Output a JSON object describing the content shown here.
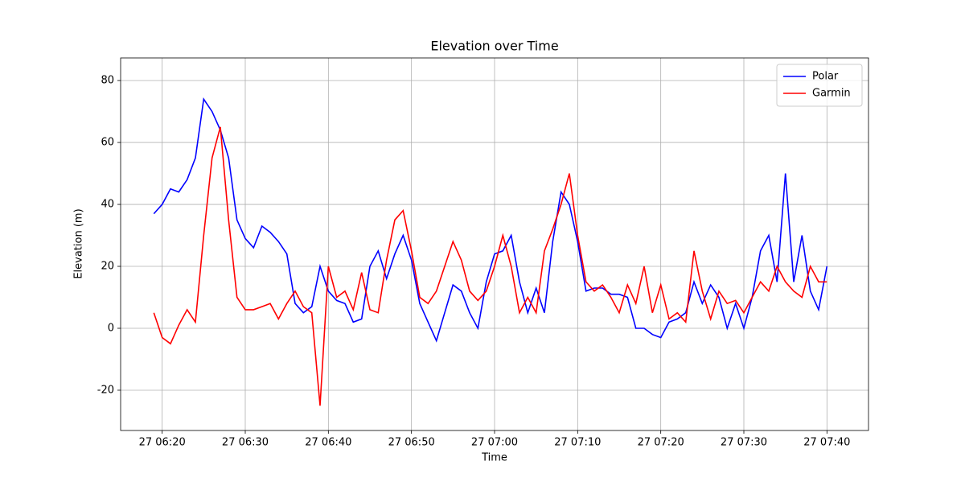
{
  "chart_data": {
    "type": "line",
    "title": "Elevation over Time",
    "xlabel": "Time",
    "ylabel": "Elevation (m)",
    "x": [
      "27 06:19",
      "27 06:20",
      "27 06:21",
      "27 06:22",
      "27 06:23",
      "27 06:24",
      "27 06:25",
      "27 06:26",
      "27 06:27",
      "27 06:28",
      "27 06:29",
      "27 06:30",
      "27 06:31",
      "27 06:32",
      "27 06:33",
      "27 06:34",
      "27 06:35",
      "27 06:36",
      "27 06:37",
      "27 06:38",
      "27 06:39",
      "27 06:40",
      "27 06:41",
      "27 06:42",
      "27 06:43",
      "27 06:44",
      "27 06:45",
      "27 06:46",
      "27 06:47",
      "27 06:48",
      "27 06:49",
      "27 06:50",
      "27 06:51",
      "27 06:52",
      "27 06:53",
      "27 06:54",
      "27 06:55",
      "27 06:56",
      "27 06:57",
      "27 06:58",
      "27 06:59",
      "27 07:00",
      "27 07:01",
      "27 07:02",
      "27 07:03",
      "27 07:04",
      "27 07:05",
      "27 07:06",
      "27 07:07",
      "27 07:08",
      "27 07:09",
      "27 07:10",
      "27 07:11",
      "27 07:12",
      "27 07:13",
      "27 07:14",
      "27 07:15",
      "27 07:16",
      "27 07:17",
      "27 07:18",
      "27 07:19",
      "27 07:20",
      "27 07:21",
      "27 07:22",
      "27 07:23",
      "27 07:24",
      "27 07:25",
      "27 07:26",
      "27 07:27",
      "27 07:28",
      "27 07:29",
      "27 07:30",
      "27 07:31",
      "27 07:32",
      "27 07:33",
      "27 07:34",
      "27 07:35",
      "27 07:36",
      "27 07:37",
      "27 07:38",
      "27 07:39",
      "27 07:40"
    ],
    "series": [
      {
        "name": "Polar",
        "color": "#0000ff",
        "values": [
          37,
          40,
          45,
          44,
          48,
          55,
          74,
          70,
          64,
          55,
          35,
          29,
          26,
          33,
          31,
          28,
          24,
          8,
          5,
          7,
          20,
          12,
          9,
          8,
          2,
          3,
          20,
          25,
          16,
          24,
          30,
          22,
          8,
          2,
          -4,
          5,
          14,
          12,
          5,
          0,
          15,
          24,
          25,
          30,
          15,
          5,
          13,
          5,
          28,
          44,
          40,
          28,
          12,
          13,
          13,
          11,
          11,
          10,
          0,
          0,
          -2,
          -3,
          2,
          3,
          5,
          15,
          8,
          14,
          10,
          0,
          8,
          0,
          10,
          25,
          30,
          15,
          50,
          15,
          30,
          12,
          6,
          20
        ]
      },
      {
        "name": "Garmin",
        "color": "#ff0000",
        "values": [
          5,
          -3,
          -5,
          1,
          6,
          2,
          30,
          55,
          65,
          35,
          10,
          6,
          6,
          7,
          8,
          3,
          8,
          12,
          7,
          5,
          -25,
          20,
          10,
          12,
          6,
          18,
          6,
          5,
          22,
          35,
          38,
          25,
          10,
          8,
          12,
          20,
          28,
          22,
          12,
          9,
          12,
          20,
          30,
          20,
          5,
          10,
          5,
          25,
          32,
          40,
          50,
          30,
          15,
          12,
          14,
          10,
          5,
          14,
          8,
          20,
          5,
          14,
          3,
          5,
          2,
          25,
          12,
          3,
          12,
          8,
          9,
          5,
          10,
          15,
          12,
          20,
          15,
          12,
          10,
          20,
          15,
          15
        ]
      }
    ],
    "xlim": [
      "27 06:15",
      "27 07:45"
    ],
    "xticks": [
      "27 06:20",
      "27 06:30",
      "27 06:40",
      "27 06:50",
      "27 07:00",
      "27 07:10",
      "27 07:20",
      "27 07:30",
      "27 07:40"
    ],
    "ylim": [
      -33,
      87.3
    ],
    "yticks": [
      -20,
      0,
      20,
      40,
      60,
      80
    ],
    "grid": true,
    "legend": "upper right"
  }
}
